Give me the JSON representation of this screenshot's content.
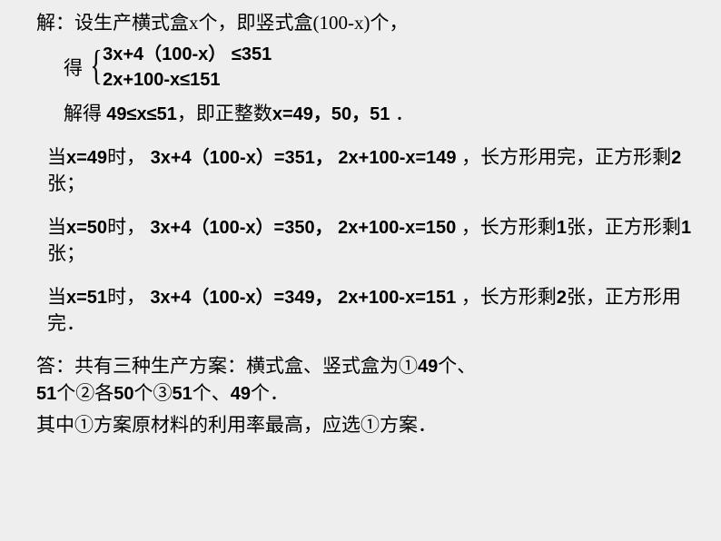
{
  "setup_text": "解：设生产横式盒x个，即竖式盒(100-x)个，",
  "brace_label": "得",
  "ineq1": "3x+4（100-x） ≤351",
  "ineq2": "2x+100-x≤151",
  "solve_prefix": "解得 ",
  "solve_bold": "49≤x≤51",
  "solve_mid": "，即",
  "solve_cn": "正整数",
  "solve_vals": "x=49，50，51 ",
  "solve_end": "．",
  "case1_a": "当",
  "case1_b": "x=49",
  "case1_c": "时，",
  "case1_d": " 3x+4（100-x）=351，   2x+100-x=149  ",
  "case1_e": "，长方形用完，正方形剩",
  "case1_f": "2",
  "case1_g": "张；",
  "case2_a": "当",
  "case2_b": "x=50",
  "case2_c": "时， ",
  "case2_d": " 3x+4（100-x）=350， 2x+100-x=150  ",
  "case2_e": "，长方形剩",
  "case2_f": "1",
  "case2_g": "张，正方形剩",
  "case2_h": "1",
  "case2_i": "张；",
  "case3_a": "当",
  "case3_b": "x=51",
  "case3_c": "时， ",
  "case3_d": " 3x+4（100-x）=349， 2x+100-x=151  ",
  "case3_e": "，长方形剩",
  "case3_f": "2",
  "case3_g": "张，正方形用完．",
  "ans1": "答：共有三种生产方案：横式盒、竖式盒为①",
  "ans1b": "49",
  "ans1c": "个、",
  "ans2a": "51",
  "ans2b": "个②各",
  "ans2c": "50",
  "ans2d": "个③",
  "ans2e": "51",
  "ans2f": "个、",
  "ans2g": "49",
  "ans2h": "个．",
  "final_text": "其中①方案原材料的利用率最高，应选①方案．"
}
